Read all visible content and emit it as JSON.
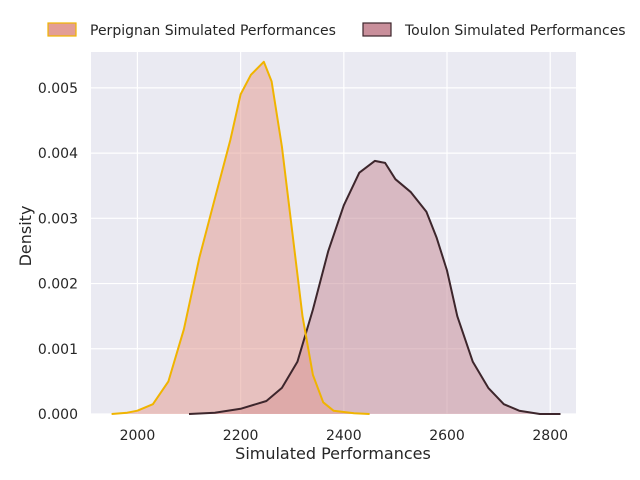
{
  "chart_data": {
    "type": "area",
    "xlabel": "Simulated Performances",
    "ylabel": "Density",
    "xlim": [
      1910,
      2850
    ],
    "ylim": [
      0,
      0.00555
    ],
    "x_ticks": [
      2000,
      2200,
      2400,
      2600,
      2800
    ],
    "x_tick_labels": [
      "2000",
      "2200",
      "2400",
      "2600",
      "2800"
    ],
    "y_ticks": [
      0,
      0.001,
      0.002,
      0.003,
      0.004,
      0.005
    ],
    "y_tick_labels": [
      "0.000",
      "0.001",
      "0.002",
      "0.003",
      "0.004",
      "0.005"
    ],
    "grid": true,
    "legend_position": "top",
    "series": [
      {
        "name": "Perpignan Simulated Performances",
        "fill": "#e39e95",
        "line": "#f0b400",
        "points": [
          [
            1950,
            0.0
          ],
          [
            1980,
            2e-05
          ],
          [
            2000,
            5e-05
          ],
          [
            2030,
            0.00015
          ],
          [
            2060,
            0.0005
          ],
          [
            2090,
            0.0013
          ],
          [
            2120,
            0.0024
          ],
          [
            2150,
            0.0033
          ],
          [
            2180,
            0.0042
          ],
          [
            2200,
            0.0049
          ],
          [
            2220,
            0.0052
          ],
          [
            2245,
            0.0054
          ],
          [
            2260,
            0.0051
          ],
          [
            2280,
            0.0041
          ],
          [
            2300,
            0.0028
          ],
          [
            2320,
            0.0015
          ],
          [
            2340,
            0.0006
          ],
          [
            2360,
            0.00018
          ],
          [
            2380,
            5e-05
          ],
          [
            2420,
            1e-05
          ],
          [
            2450,
            0.0
          ]
        ]
      },
      {
        "name": "Toulon Simulated Performances",
        "fill": "#c98f9b",
        "line": "#3d262c",
        "points": [
          [
            2100,
            0.0
          ],
          [
            2150,
            2e-05
          ],
          [
            2200,
            8e-05
          ],
          [
            2250,
            0.0002
          ],
          [
            2280,
            0.0004
          ],
          [
            2310,
            0.0008
          ],
          [
            2340,
            0.0016
          ],
          [
            2370,
            0.0025
          ],
          [
            2400,
            0.0032
          ],
          [
            2430,
            0.0037
          ],
          [
            2460,
            0.00388
          ],
          [
            2480,
            0.00385
          ],
          [
            2500,
            0.0036
          ],
          [
            2530,
            0.0034
          ],
          [
            2560,
            0.0031
          ],
          [
            2580,
            0.0027
          ],
          [
            2600,
            0.0022
          ],
          [
            2620,
            0.0015
          ],
          [
            2650,
            0.0008
          ],
          [
            2680,
            0.0004
          ],
          [
            2710,
            0.00015
          ],
          [
            2740,
            5e-05
          ],
          [
            2780,
            0.0
          ],
          [
            2820,
            0.0
          ]
        ]
      }
    ]
  }
}
